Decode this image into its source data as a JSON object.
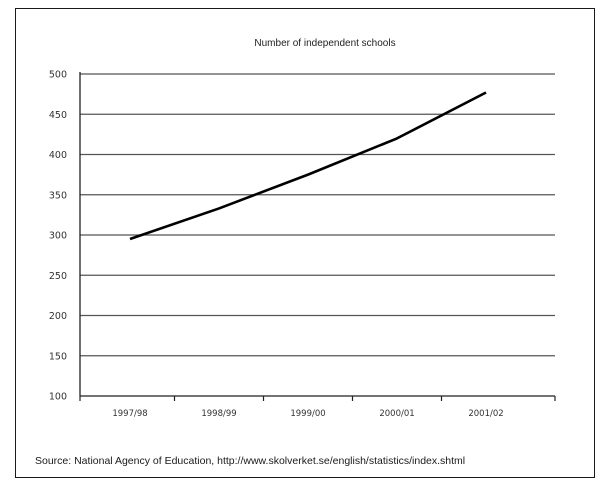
{
  "chart_data": {
    "type": "line",
    "title": "Number of independent schools",
    "xlabel": "",
    "ylabel": "",
    "categories": [
      "1997/98",
      "1998/99",
      "1999/00",
      "2000/01",
      "2001/02"
    ],
    "series": [
      {
        "values": [
          295,
          333,
          375,
          420,
          477
        ]
      }
    ],
    "ylim": [
      100,
      500
    ],
    "yticks": [
      "100",
      "150",
      "200",
      "250",
      "300",
      "350",
      "400",
      "450",
      "500"
    ],
    "grid": true,
    "legend": "none",
    "line_color": "#000000",
    "grid_color": "#555555"
  },
  "source": "Source: National Agency of Education, http://www.skolverket.se/english/statistics/index.shtml"
}
